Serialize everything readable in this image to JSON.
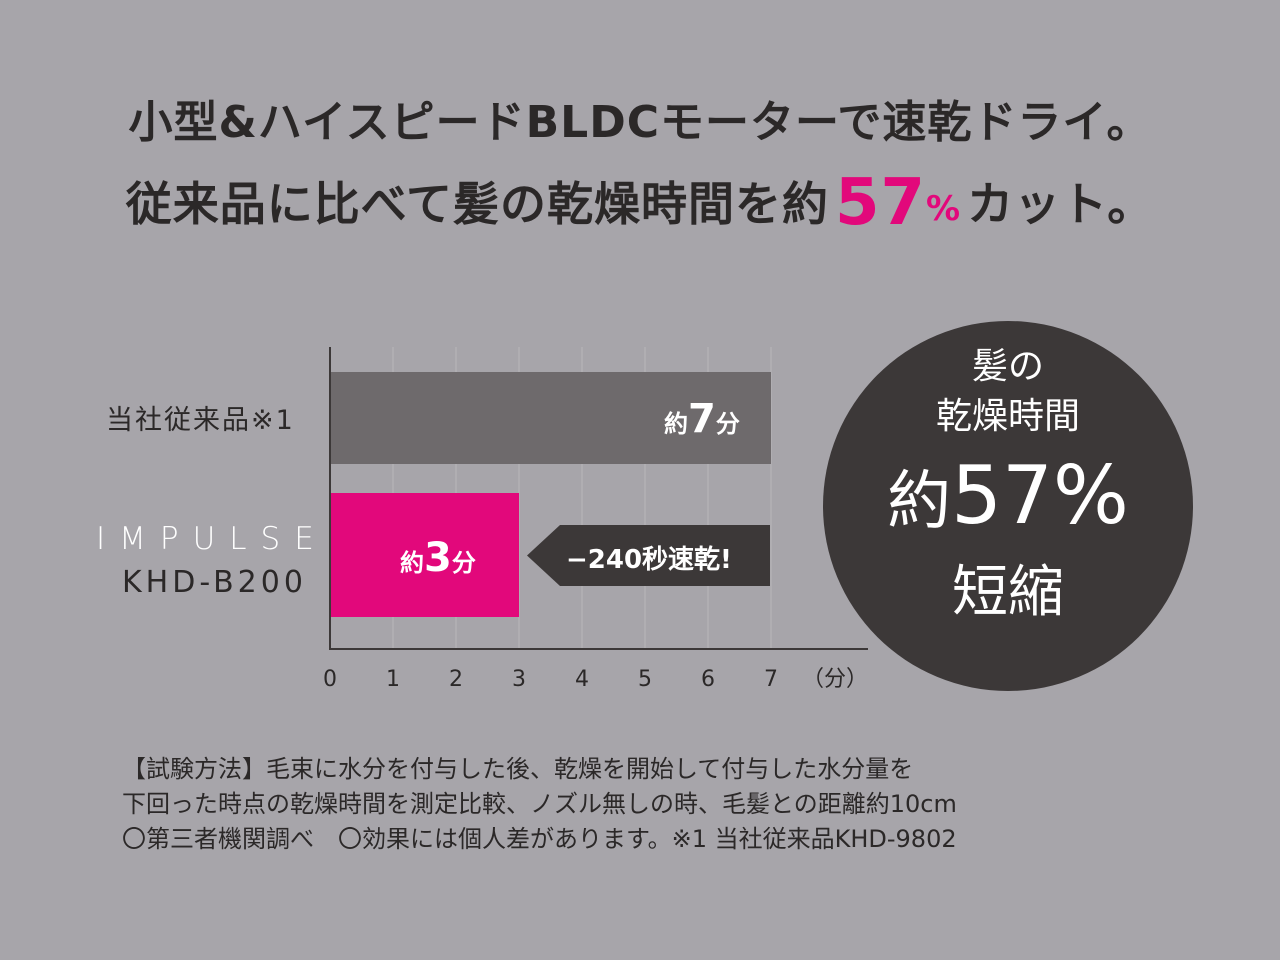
{
  "headline": {
    "line1": "小型&ハイスピードBLDCモーターで速乾ドライ。",
    "line2_pre": "従来品に比べて髪の乾燥時間を約",
    "line2_num": "57",
    "line2_sign": "%",
    "line2_post": "カット。"
  },
  "colors": {
    "bar_old": "#6e6a6c",
    "bar_new": "#e2087b",
    "circle": "#3c3838",
    "accent": "#e2087b",
    "background": "#a7a5aa"
  },
  "chart_data": {
    "type": "bar",
    "orientation": "horizontal",
    "categories": [
      "当社従来品※1",
      "IMPULSE KHD-B200"
    ],
    "values": [
      7,
      3
    ],
    "category_labels": {
      "old": "当社従来品※1",
      "brand": "IMPULSE",
      "model": "KHD-B200"
    },
    "bar_labels": [
      {
        "pre": "約",
        "num": "7",
        "post": "分"
      },
      {
        "pre": "約",
        "num": "3",
        "post": "分"
      }
    ],
    "x_ticks": [
      "0",
      "1",
      "2",
      "3",
      "4",
      "5",
      "6",
      "7"
    ],
    "x_unit": "（分）",
    "xlim": [
      0,
      7
    ],
    "grid": true,
    "annotation": "−240秒速乾!"
  },
  "badge": {
    "line1": "髪の",
    "line2": "乾燥時間",
    "line3_pre": "約",
    "line3_value": "57%",
    "line4": "短縮"
  },
  "notes": [
    "【試験方法】毛束に水分を付与した後、乾燥を開始して付与した水分量を",
    "下回った時点の乾燥時間を測定比較、ノズル無しの時、毛髪との距離約10cm",
    "〇第三者機関調べ　〇効果には個人差があります。※1 当社従来品KHD-9802"
  ]
}
